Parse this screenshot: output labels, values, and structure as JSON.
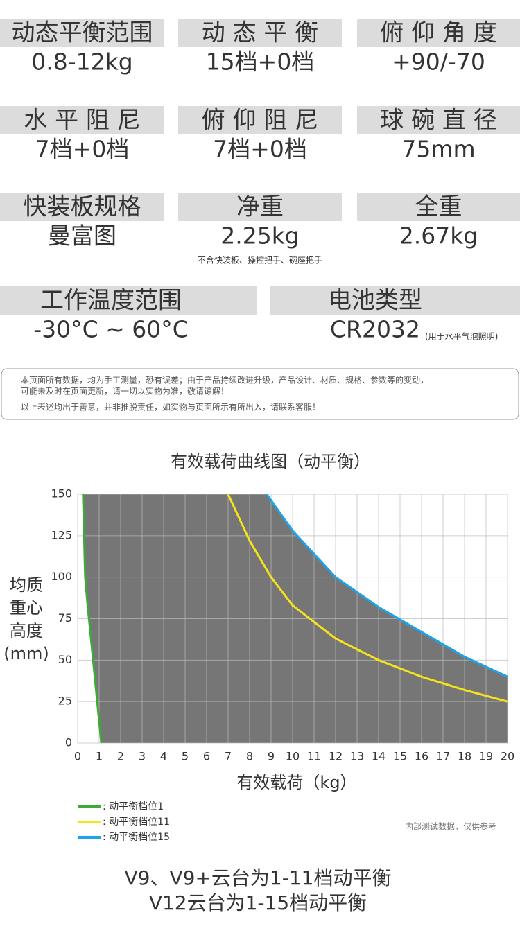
{
  "specs": [
    [
      {
        "label": "动态平衡范围",
        "value": "0.8-12kg"
      },
      {
        "label": "动 态 平 衡",
        "value": "15档+0档"
      },
      {
        "label": "俯 仰 角 度",
        "value": "+90/-70"
      }
    ],
    [
      {
        "label": "水 平 阻 尼",
        "value": "7档+0档"
      },
      {
        "label": "俯 仰 阻 尼",
        "value": "7档+0档"
      },
      {
        "label": "球 碗 直 径",
        "value": "75mm"
      }
    ],
    [
      {
        "label": "快装板规格",
        "value": "曼富图"
      },
      {
        "label": "净重",
        "value": "2.25kg",
        "note": "不含快装板、操控把手、碗座把手"
      },
      {
        "label": "全重",
        "value": "2.67kg"
      }
    ],
    [
      {
        "label": "工作温度范围",
        "value": "-30°C ~ 60°C"
      },
      {
        "label": "电池类型",
        "value": "CR2032",
        "note": "(用于水平气泡照明)"
      }
    ]
  ],
  "disclaimer": [
    "本页面所有数据，均为手工测量，恐有误差；由于产品持续改进升级，产品设计、材质、规格、参数等的变动，",
    "可能未及时在页面更新，请一切以实物为准，敬请谅解！",
    "以上表述均出于善意，并非推脱责任，如实物与页面所示有所出入，请联系客服！"
  ],
  "chart_data": {
    "type": "area",
    "title": "有效载荷曲线图（动平衡）",
    "x_label": "有效载荷（kg）",
    "y_label": [
      "均质",
      "重心",
      "高度",
      "(mm)"
    ],
    "xlim": [
      0,
      20
    ],
    "xticks": [
      0,
      1,
      2,
      3,
      4,
      5,
      6,
      7,
      8,
      9,
      10,
      11,
      12,
      13,
      14,
      15,
      16,
      17,
      18,
      19,
      20
    ],
    "ylim": [
      0,
      150
    ],
    "yticks": [
      0,
      25,
      50,
      75,
      100,
      125,
      150
    ],
    "grid": true,
    "fill_color": "#767676",
    "series": [
      {
        "name": ": 动平衡档位1",
        "color": "#3daa35",
        "x": [
          0.25,
          0.35,
          0.45,
          1.1
        ],
        "values": [
          150,
          100,
          85,
          0
        ]
      },
      {
        "name": ": 动平衡档位11",
        "color": "#f7e319",
        "x": [
          7,
          8,
          9,
          10,
          12,
          14,
          16,
          18,
          20
        ],
        "values": [
          150,
          122,
          100,
          83,
          63,
          50,
          40,
          32,
          25
        ]
      },
      {
        "name": ": 动平衡档位15",
        "color": "#1ba4e8",
        "x": [
          8.8,
          10,
          12,
          14,
          16,
          18,
          20
        ],
        "values": [
          150,
          128,
          100,
          82,
          67,
          52,
          40
        ]
      }
    ],
    "note": "内部测试数据，仅供参考"
  },
  "footer": [
    "V9、V9+云台为1-11档动平衡",
    "V12云台为1-15档动平衡"
  ]
}
